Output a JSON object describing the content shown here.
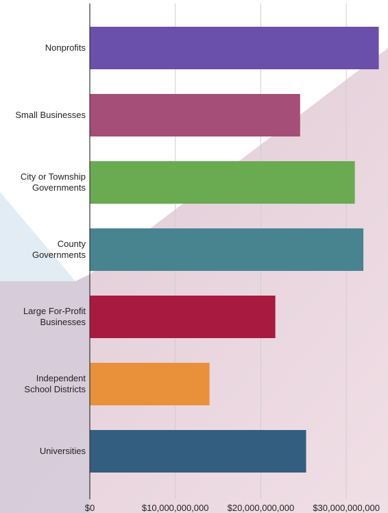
{
  "chart_data": {
    "type": "bar",
    "orientation": "horizontal",
    "categories": [
      "Nonprofits",
      "Small Businesses",
      "City or Township\nGovernments",
      "County\nGovernments",
      "Large For-Profit\nBusinesses",
      "Independent\nSchool Districts",
      "Universities"
    ],
    "values": [
      33800000000,
      24600000000,
      31000000000,
      32000000000,
      21700000000,
      14000000000,
      25300000000
    ],
    "colors": [
      "#6a4fab",
      "#a54e78",
      "#6aaa50",
      "#478490",
      "#a81a40",
      "#e8913a",
      "#335e80"
    ],
    "xlim": [
      0,
      35000000000
    ],
    "xticks": [
      {
        "value": 0,
        "label": "$0"
      },
      {
        "value": 10000000000,
        "label": "$10,000,000,000"
      },
      {
        "value": 20000000000,
        "label": "$20,000,000,000"
      },
      {
        "value": 30000000000,
        "label": "$30,000,000,000"
      }
    ],
    "grid": true
  }
}
